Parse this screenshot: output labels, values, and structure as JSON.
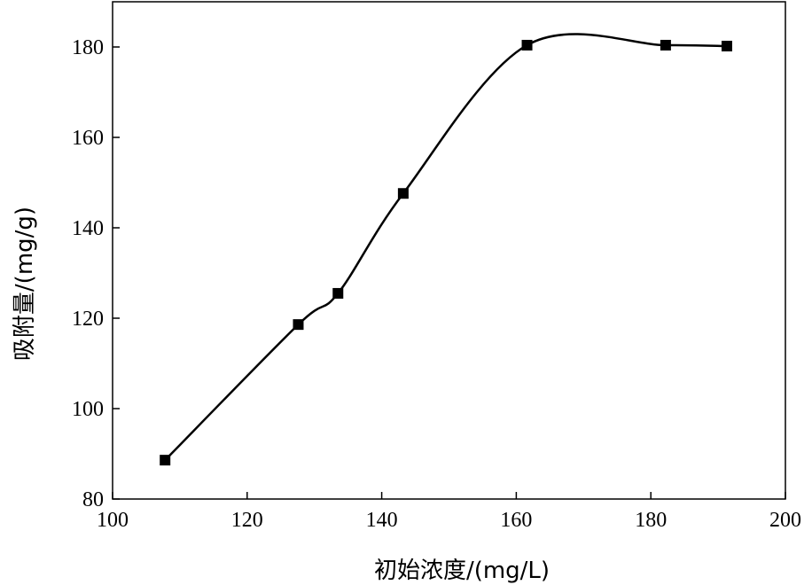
{
  "chart_data": {
    "type": "line",
    "xlabel": "初始浓度/(mg/L)",
    "ylabel": "吸附量/(mg/g)",
    "xlim": [
      100,
      200
    ],
    "ylim": [
      80,
      190
    ],
    "xticks": [
      100,
      120,
      140,
      160,
      180,
      200
    ],
    "yticks": [
      80,
      100,
      120,
      140,
      160,
      180
    ],
    "grid": false,
    "legend": "none",
    "marker": "square",
    "line_style": "smooth",
    "series": [
      {
        "x": [
          107.8,
          127.6,
          133.5,
          143.2,
          161.6,
          182.2,
          191.3
        ],
        "y": [
          88.6,
          118.6,
          125.5,
          147.6,
          180.4,
          180.4,
          180.2
        ]
      }
    ],
    "colors": {
      "line": "#000000",
      "marker": "#000000",
      "axes": "#000000"
    }
  }
}
